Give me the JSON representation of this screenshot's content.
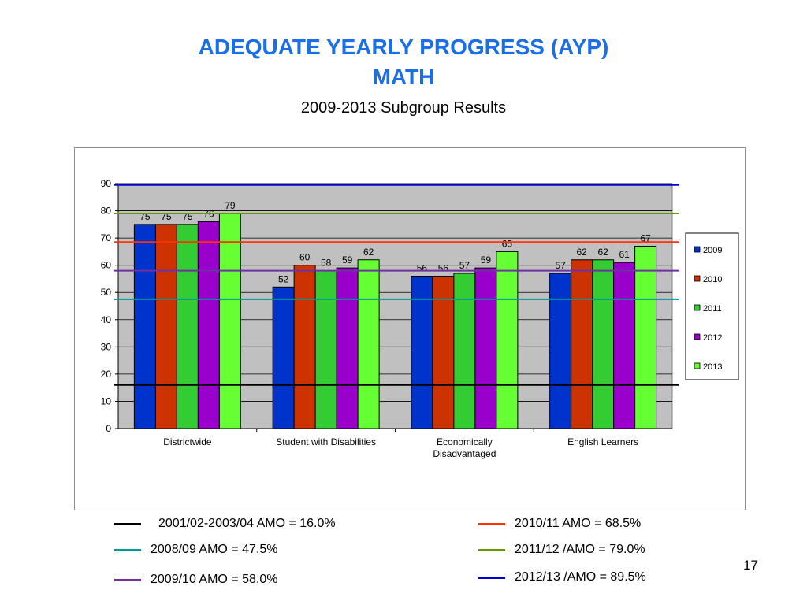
{
  "slide": {
    "title_line1": "ADEQUATE YEARLY PROGRESS (AYP)",
    "title_line2": "MATH",
    "subtitle": "2009-2013 Subgroup Results",
    "page_number": "17"
  },
  "chart_data": {
    "type": "bar",
    "categories": [
      "Districtwide",
      "Student with Disabilities",
      "Economically Disadvantaged",
      "English Learners"
    ],
    "category_label_lines": [
      [
        "Districtwide"
      ],
      [
        "Student with Disabilities"
      ],
      [
        "Economically",
        "Disadvantaged"
      ],
      [
        "English Learners"
      ]
    ],
    "series": [
      {
        "name": "2009",
        "color": "#0033cc",
        "values": [
          75,
          52,
          56,
          57
        ]
      },
      {
        "name": "2010",
        "color": "#cc3300",
        "values": [
          75,
          60,
          56,
          62
        ]
      },
      {
        "name": "2011",
        "color": "#33cc33",
        "values": [
          75,
          58,
          57,
          62
        ]
      },
      {
        "name": "2012",
        "color": "#9900cc",
        "values": [
          76,
          59,
          59,
          61
        ]
      },
      {
        "name": "2013",
        "color": "#66ff33",
        "values": [
          79,
          62,
          65,
          67
        ]
      }
    ],
    "ylim": [
      0,
      90
    ],
    "yticks": [
      0,
      10,
      20,
      30,
      40,
      50,
      60,
      70,
      80,
      90
    ],
    "grid": true,
    "plot_background": "#c0c0c0",
    "legend_position": "right",
    "data_labels": true,
    "reference_lines": [
      {
        "label": "2001/02-2003/04 AMO = 16.0%",
        "value": 16.0,
        "color": "#000000"
      },
      {
        "label": "2008/09 AMO = 47.5%",
        "value": 47.5,
        "color": "#009999"
      },
      {
        "label": "2009/10 AMO = 58.0%",
        "value": 58.0,
        "color": "#7030a0"
      },
      {
        "label": "2010/11 AMO = 68.5%",
        "value": 68.5,
        "color": "#ff3300"
      },
      {
        "label": "2011/12 /AMO = 79.0%",
        "value": 79.0,
        "color": "#669900"
      },
      {
        "label": "2012/13 /AMO = 89.5%",
        "value": 89.5,
        "color": "#0000cc"
      }
    ]
  }
}
